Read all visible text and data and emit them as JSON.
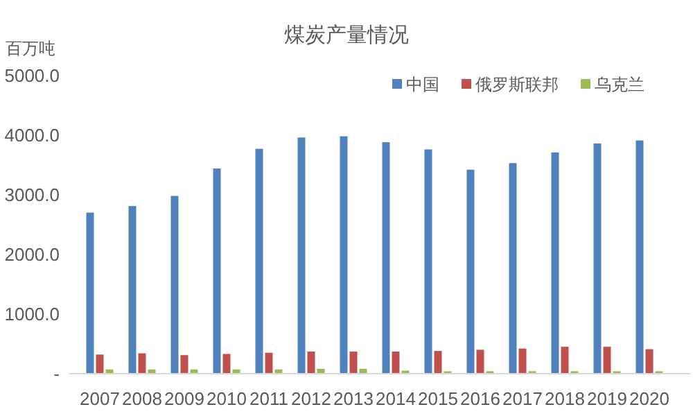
{
  "chart_data": {
    "type": "bar",
    "title": "煤炭产量情况",
    "ylabel": "百万吨",
    "categories": [
      "2007",
      "2008",
      "2009",
      "2010",
      "2011",
      "2012",
      "2013",
      "2014",
      "2015",
      "2016",
      "2017",
      "2018",
      "2019",
      "2020"
    ],
    "series": [
      {
        "name": "中国",
        "color": "#4f81bd",
        "values": [
          2690,
          2800,
          2970,
          3430,
          3760,
          3950,
          3970,
          3870,
          3750,
          3410,
          3520,
          3700,
          3850,
          3900
        ]
      },
      {
        "name": "俄罗斯联邦",
        "color": "#c0504d",
        "values": [
          310,
          330,
          300,
          320,
          340,
          360,
          360,
          360,
          370,
          390,
          410,
          440,
          440,
          400
        ]
      },
      {
        "name": "乌克兰",
        "color": "#9bbb59",
        "values": [
          60,
          60,
          60,
          60,
          60,
          70,
          70,
          40,
          30,
          30,
          30,
          30,
          30,
          30
        ]
      }
    ],
    "ylim": [
      0,
      5000
    ],
    "yticks": [
      {
        "value": 0,
        "label": "-"
      },
      {
        "value": 1000,
        "label": "1000.0"
      },
      {
        "value": 2000,
        "label": "2000.0"
      },
      {
        "value": 3000,
        "label": "3000.0"
      },
      {
        "value": 4000,
        "label": "4000.0"
      },
      {
        "value": 5000,
        "label": "5000.0"
      }
    ],
    "grid": false,
    "legend": "top right"
  }
}
